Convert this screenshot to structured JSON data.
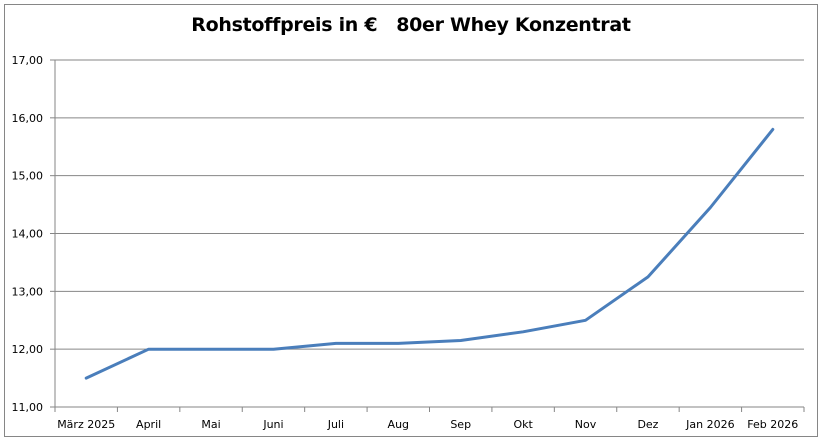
{
  "chart_data": {
    "type": "line",
    "title": "Rohstoffpreis in €   80er Whey Konzentrat",
    "xlabel": "",
    "ylabel": "",
    "ylim": [
      11,
      17
    ],
    "yticks": [
      "11,00",
      "12,00",
      "13,00",
      "14,00",
      "15,00",
      "16,00",
      "17,00"
    ],
    "grid": true,
    "legend": null,
    "categories": [
      "März 2025",
      "April",
      "Mai",
      "Juni",
      "Juli",
      "Aug",
      "Sep",
      "Okt",
      "Nov",
      "Dez",
      "Jan 2026",
      "Feb 2026"
    ],
    "series": [
      {
        "name": "Rohstoffpreis",
        "color": "#4a7ebb",
        "values": [
          11.5,
          12.0,
          12.0,
          12.0,
          12.1,
          12.1,
          12.15,
          12.3,
          12.5,
          13.25,
          14.45,
          15.8
        ]
      }
    ]
  }
}
